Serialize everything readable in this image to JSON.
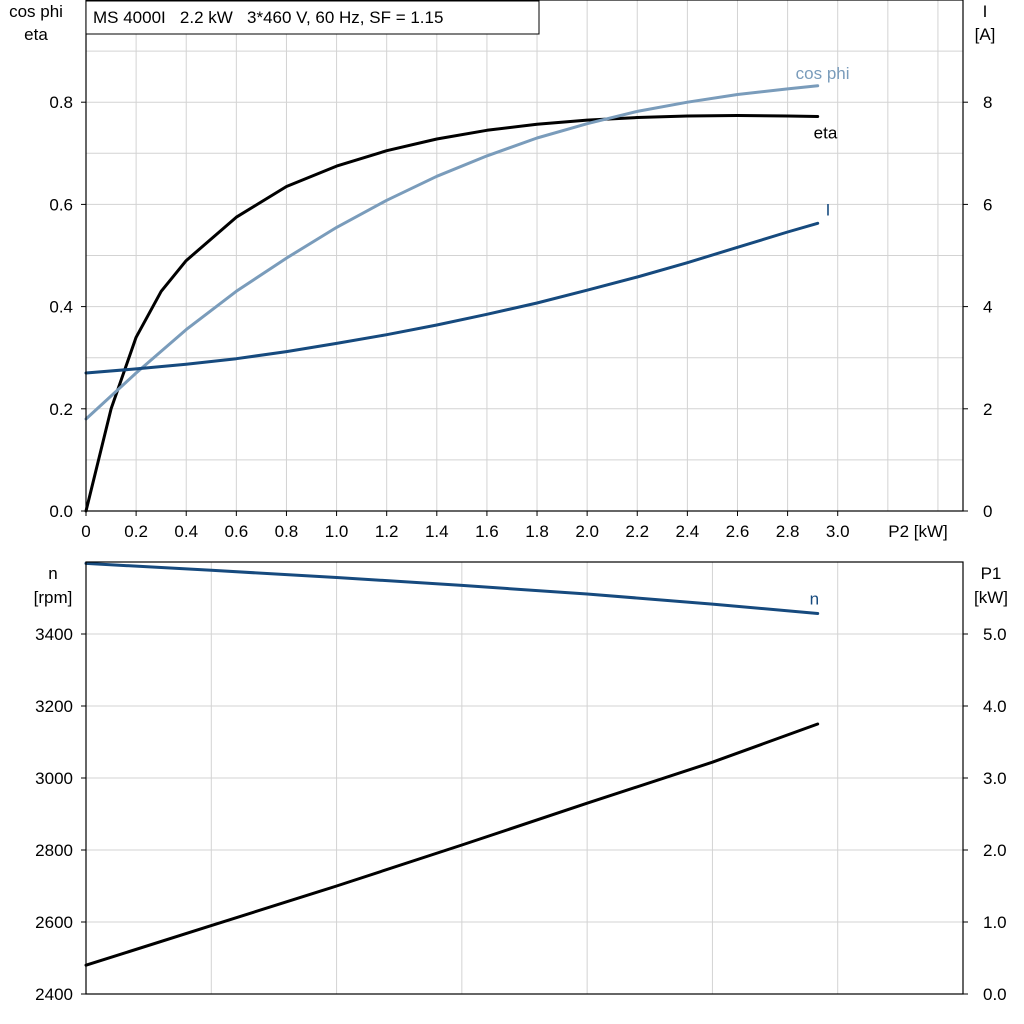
{
  "chart_data": [
    {
      "type": "line",
      "title": "MS 4000I   2.2 kW   3*460 V, 60 Hz, SF = 1.15",
      "xlabel": "P2 [kW]",
      "xlim": [
        0,
        3.5
      ],
      "x_ticks": [
        "0",
        "0.2",
        "0.4",
        "0.6",
        "0.8",
        "1.0",
        "1.2",
        "1.4",
        "1.6",
        "1.8",
        "2.0",
        "2.2",
        "2.4",
        "2.6",
        "2.8",
        "3.0"
      ],
      "ylabel_left": [
        "cos phi",
        "eta"
      ],
      "ylim_left": [
        0,
        1.0
      ],
      "y_ticks_left": [
        "0.0",
        "0.2",
        "0.4",
        "0.6",
        "0.8"
      ],
      "ylabel_right": [
        "I",
        "[A]"
      ],
      "ylim_right": [
        0,
        10
      ],
      "y_ticks_right": [
        "0",
        "2",
        "4",
        "6",
        "8"
      ],
      "grid": true,
      "series": [
        {
          "name": "eta",
          "axis": "left",
          "color": "#000000",
          "x": [
            0,
            0.1,
            0.2,
            0.3,
            0.4,
            0.6,
            0.8,
            1.0,
            1.2,
            1.4,
            1.6,
            1.8,
            2.0,
            2.2,
            2.4,
            2.6,
            2.8,
            2.92
          ],
          "y": [
            0.0,
            0.2,
            0.34,
            0.43,
            0.49,
            0.575,
            0.635,
            0.675,
            0.705,
            0.728,
            0.745,
            0.757,
            0.765,
            0.77,
            0.773,
            0.774,
            0.773,
            0.772
          ]
        },
        {
          "name": "cos phi",
          "axis": "left",
          "color": "#7a9cbb",
          "x": [
            0,
            0.2,
            0.4,
            0.6,
            0.8,
            1.0,
            1.2,
            1.4,
            1.6,
            1.8,
            2.0,
            2.2,
            2.4,
            2.6,
            2.8,
            2.92
          ],
          "y": [
            0.18,
            0.27,
            0.355,
            0.43,
            0.495,
            0.555,
            0.608,
            0.655,
            0.695,
            0.73,
            0.758,
            0.782,
            0.8,
            0.815,
            0.826,
            0.832
          ]
        },
        {
          "name": "I",
          "axis": "right",
          "color": "#164a7e",
          "x": [
            0,
            0.2,
            0.4,
            0.6,
            0.8,
            1.0,
            1.2,
            1.4,
            1.6,
            1.8,
            2.0,
            2.2,
            2.4,
            2.6,
            2.8,
            2.92
          ],
          "y": [
            2.7,
            2.78,
            2.87,
            2.98,
            3.12,
            3.28,
            3.45,
            3.64,
            3.85,
            4.07,
            4.32,
            4.58,
            4.86,
            5.16,
            5.46,
            5.63
          ]
        }
      ]
    },
    {
      "type": "line",
      "xlim": [
        0,
        3.5
      ],
      "ylabel_left": [
        "n",
        "[rpm]"
      ],
      "ylim_left": [
        2400,
        3600
      ],
      "y_ticks_left": [
        "2400",
        "2600",
        "2800",
        "3000",
        "3200",
        "3400"
      ],
      "ylabel_right": [
        "P1",
        "[kW]"
      ],
      "ylim_right": [
        0,
        6
      ],
      "y_ticks_right": [
        "0.0",
        "1.0",
        "2.0",
        "3.0",
        "4.0",
        "5.0"
      ],
      "grid": true,
      "series": [
        {
          "name": "n",
          "axis": "left",
          "color": "#164a7e",
          "x": [
            0,
            0.5,
            1.0,
            1.5,
            2.0,
            2.5,
            2.92
          ],
          "y": [
            3596,
            3577,
            3557,
            3535,
            3511,
            3483,
            3457
          ]
        },
        {
          "axis": "right",
          "color": "#000000",
          "x": [
            0,
            0.5,
            1.0,
            1.5,
            2.0,
            2.5,
            2.92
          ],
          "y": [
            0.4,
            0.95,
            1.5,
            2.07,
            2.65,
            3.22,
            3.75
          ]
        }
      ]
    }
  ]
}
